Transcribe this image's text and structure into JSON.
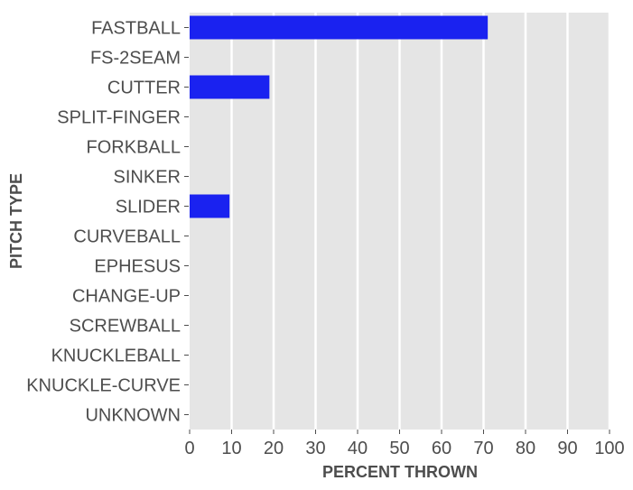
{
  "chart_data": {
    "type": "bar",
    "orientation": "horizontal",
    "xlabel": "PERCENT THROWN",
    "ylabel": "PITCH TYPE",
    "xlim": [
      0,
      100
    ],
    "x_ticks": [
      0,
      10,
      20,
      30,
      40,
      50,
      60,
      70,
      80,
      90,
      100
    ],
    "grid": true,
    "categories": [
      "FASTBALL",
      "FS-2SEAM",
      "CUTTER",
      "SPLIT-FINGER",
      "FORKBALL",
      "SINKER",
      "SLIDER",
      "CURVEBALL",
      "EPHESUS",
      "CHANGE-UP",
      "SCREWBALL",
      "KNUCKLEBALL",
      "KNUCKLE-CURVE",
      "UNKNOWN"
    ],
    "values": [
      71,
      0,
      19,
      0,
      0,
      0,
      9.5,
      0,
      0,
      0,
      0,
      0,
      0,
      0
    ],
    "colors": {
      "bar": "#1a22f0",
      "panel": "#e5e5e5",
      "grid": "#ffffff",
      "text": "#4d4d4d"
    }
  }
}
